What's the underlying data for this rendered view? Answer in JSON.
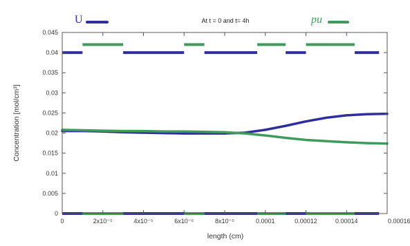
{
  "chart_data": {
    "type": "line",
    "title": "",
    "subtitle": "At t = 0 and t= 4h",
    "xlabel": "length (cm)",
    "ylabel": "Concentration [mol/cm³]",
    "xlim": [
      0,
      0.00016
    ],
    "ylim": [
      0,
      0.045
    ],
    "x_ticks": [
      {
        "value": 0,
        "label": "0"
      },
      {
        "value": 2e-05,
        "label": "2x10⁻⁵"
      },
      {
        "value": 4e-05,
        "label": "4x10⁻⁵"
      },
      {
        "value": 6e-05,
        "label": "6x10⁻⁵"
      },
      {
        "value": 8e-05,
        "label": "8x10⁻⁵"
      },
      {
        "value": 0.0001,
        "label": "0.0001"
      },
      {
        "value": 0.00012,
        "label": "0.00012"
      },
      {
        "value": 0.00014,
        "label": "0.00014"
      },
      {
        "value": 0.00016,
        "label": "0.00016"
      }
    ],
    "y_ticks": [
      {
        "value": 0,
        "label": "0"
      },
      {
        "value": 0.005,
        "label": "0.005"
      },
      {
        "value": 0.01,
        "label": "0.01"
      },
      {
        "value": 0.015,
        "label": "0.015"
      },
      {
        "value": 0.02,
        "label": "0.02"
      },
      {
        "value": 0.025,
        "label": "0.025"
      },
      {
        "value": 0.03,
        "label": "0.03"
      },
      {
        "value": 0.035,
        "label": "0.035"
      },
      {
        "value": 0.04,
        "label": "0.04"
      },
      {
        "value": 0.045,
        "label": "0.045"
      }
    ],
    "grid": false,
    "legend_placement": "top",
    "series": [
      {
        "name": "U",
        "color": "#2e2e9c",
        "segments_y": [
          0,
          0.04
        ],
        "segments": [
          [
            0,
            1e-05
          ],
          [
            3e-05,
            6e-05
          ],
          [
            7e-05,
            9.6e-05
          ],
          [
            0.00011,
            0.00012
          ],
          [
            0.000144,
            0.000156
          ]
        ],
        "curve": {
          "x": [
            0,
            1e-05,
            2e-05,
            3e-05,
            4e-05,
            5e-05,
            6e-05,
            7e-05,
            8e-05,
            9e-05,
            0.0001,
            0.00011,
            0.00012,
            0.00013,
            0.00014,
            0.00015,
            0.00016
          ],
          "y": [
            0.0205,
            0.0205,
            0.0204,
            0.0202,
            0.0201,
            0.02,
            0.0199,
            0.0199,
            0.0199,
            0.0201,
            0.0208,
            0.0218,
            0.0229,
            0.0238,
            0.0244,
            0.0247,
            0.0248
          ]
        }
      },
      {
        "name": "pu",
        "color": "#3f9b5b",
        "segments_y": [
          0,
          0.042
        ],
        "segments": [
          [
            1e-05,
            3e-05
          ],
          [
            6e-05,
            7e-05
          ],
          [
            9.6e-05,
            0.00011
          ],
          [
            0.00012,
            0.000144
          ]
        ],
        "curve": {
          "x": [
            0,
            1e-05,
            2e-05,
            3e-05,
            4e-05,
            5e-05,
            6e-05,
            7e-05,
            8e-05,
            9e-05,
            0.0001,
            0.00011,
            0.00012,
            0.00013,
            0.00014,
            0.00015,
            0.00016
          ],
          "y": [
            0.0208,
            0.0207,
            0.0206,
            0.0205,
            0.0205,
            0.0204,
            0.0204,
            0.0203,
            0.0202,
            0.0199,
            0.0194,
            0.0188,
            0.0183,
            0.018,
            0.0177,
            0.0175,
            0.0174
          ]
        }
      }
    ]
  }
}
